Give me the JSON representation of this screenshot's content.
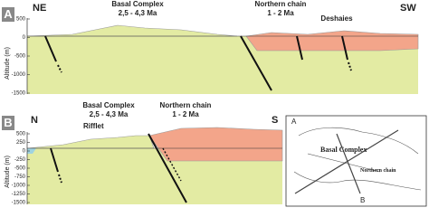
{
  "panel_a": {
    "label": "A",
    "left_end": "NE",
    "right_end": "SW",
    "axis_label": "Altitude (m)",
    "yticks": [
      "500",
      "0",
      "-500",
      "-1000",
      "-1500"
    ],
    "units": [
      {
        "name": "Basal Complex",
        "age": "2,5 - 4,3 Ma"
      },
      {
        "name": "Northern chain",
        "age": "1 - 2 Ma"
      }
    ],
    "place": "Deshaies"
  },
  "panel_b": {
    "label": "B",
    "left_end": "N",
    "right_end": "S",
    "axis_label": "Altitude (m)",
    "yticks": [
      "500",
      "250",
      "0",
      "-250",
      "-500",
      "-750",
      "-1000",
      "-1250",
      "-1500"
    ],
    "units": [
      {
        "name": "Basal Complex",
        "age": "2,5 - 4,3 Ma"
      },
      {
        "name": "Northern chain",
        "age": "1 - 2 Ma"
      }
    ],
    "place": "Rifflet"
  },
  "map": {
    "units": [
      "Basal Complex",
      "Northern chain"
    ],
    "section_a": "A",
    "section_b": "B"
  }
}
